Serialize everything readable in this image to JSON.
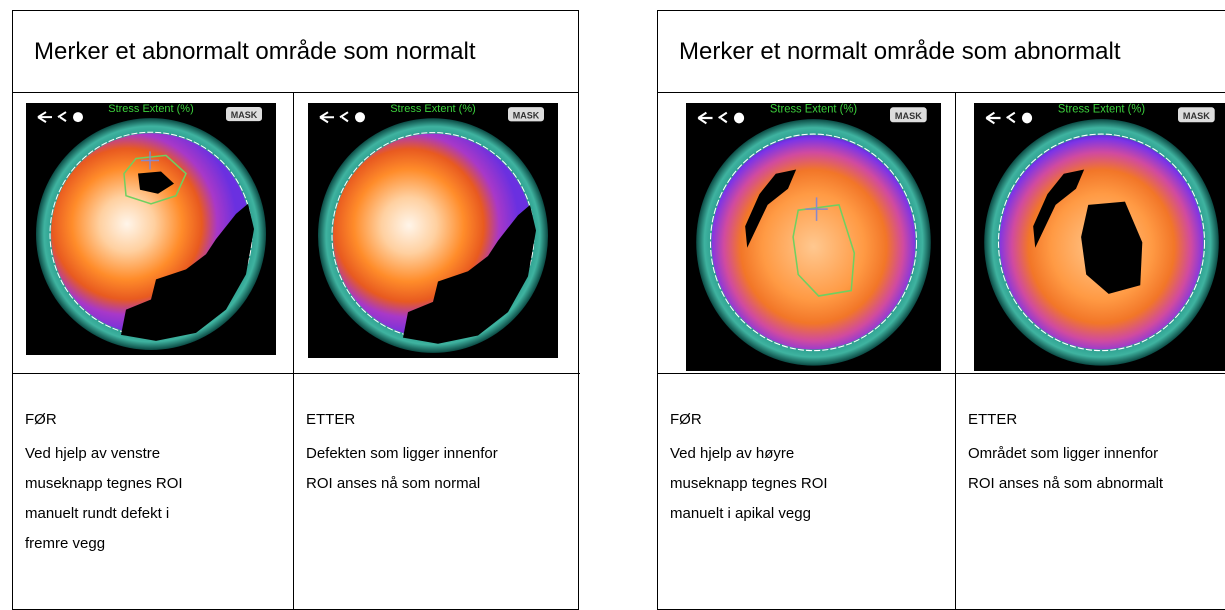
{
  "tables": [
    {
      "title": "Merker et abnormalt område som normalt",
      "cells": [
        {
          "image": {
            "label": "Stress Extent (%)",
            "badge": "MASK"
          },
          "heading": "FØR",
          "text": [
            "Ved hjelp av venstre",
            "museknapp tegnes ROI",
            "manuelt rundt defekt i",
            "fremre vegg"
          ]
        },
        {
          "image": {
            "label": "Stress Extent (%)",
            "badge": "MASK"
          },
          "heading": "ETTER",
          "text": [
            "Defekten som ligger innenfor",
            "ROI anses nå som normal"
          ]
        }
      ]
    },
    {
      "title": "Merker et normalt område som abnormalt",
      "cells": [
        {
          "image": {
            "label": "Stress Extent (%)",
            "badge": "MASK"
          },
          "heading": "FØR",
          "text": [
            "Ved hjelp av høyre",
            "museknapp tegnes ROI",
            "manuelt i apikal vegg"
          ]
        },
        {
          "image": {
            "label": "Stress Extent (%)",
            "badge": "MASK"
          },
          "heading": "ETTER",
          "text": [
            "Området som ligger innenfor",
            "ROI anses nå som abnormalt"
          ]
        }
      ]
    }
  ]
}
